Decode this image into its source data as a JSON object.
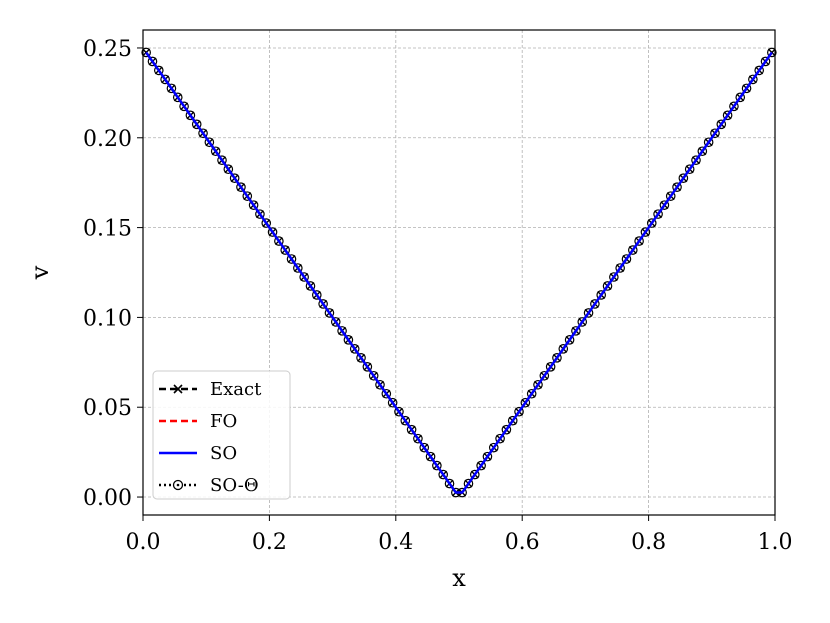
{
  "chart_data": {
    "type": "line",
    "title": "",
    "xlabel": "x",
    "ylabel": "v",
    "xlim": [
      0.0,
      1.0
    ],
    "ylim": [
      -0.01,
      0.26
    ],
    "grid": true,
    "legend_position": "lower-left",
    "x_ticks": [
      0.0,
      0.2,
      0.4,
      0.6,
      0.8,
      1.0
    ],
    "x_tick_labels": [
      "0.0",
      "0.2",
      "0.4",
      "0.6",
      "0.8",
      "1.0"
    ],
    "y_ticks": [
      0.0,
      0.05,
      0.1,
      0.15,
      0.2,
      0.25
    ],
    "y_tick_labels": [
      "0.00",
      "0.05",
      "0.10",
      "0.15",
      "0.20",
      "0.25"
    ],
    "x": [
      0.005,
      0.015,
      0.025,
      0.035,
      0.045,
      0.055,
      0.065,
      0.075,
      0.085,
      0.095,
      0.105,
      0.115,
      0.125,
      0.135,
      0.145,
      0.155,
      0.165,
      0.175,
      0.185,
      0.195,
      0.205,
      0.215,
      0.225,
      0.235,
      0.245,
      0.255,
      0.265,
      0.275,
      0.285,
      0.295,
      0.305,
      0.315,
      0.325,
      0.335,
      0.345,
      0.355,
      0.365,
      0.375,
      0.385,
      0.395,
      0.405,
      0.415,
      0.425,
      0.435,
      0.445,
      0.455,
      0.465,
      0.475,
      0.485,
      0.495,
      0.505,
      0.515,
      0.525,
      0.535,
      0.545,
      0.555,
      0.565,
      0.575,
      0.585,
      0.595,
      0.605,
      0.615,
      0.625,
      0.635,
      0.645,
      0.655,
      0.665,
      0.675,
      0.685,
      0.695,
      0.705,
      0.715,
      0.725,
      0.735,
      0.745,
      0.755,
      0.765,
      0.775,
      0.785,
      0.795,
      0.805,
      0.815,
      0.825,
      0.835,
      0.845,
      0.855,
      0.865,
      0.875,
      0.885,
      0.895,
      0.905,
      0.915,
      0.925,
      0.935,
      0.945,
      0.955,
      0.965,
      0.975,
      0.985,
      0.995
    ],
    "series": [
      {
        "name": "Exact",
        "color": "#000000",
        "style": "dashed",
        "marker": "x",
        "values": [
          0.2475,
          0.2425,
          0.2375,
          0.2325,
          0.2275,
          0.2225,
          0.2175,
          0.2125,
          0.2075,
          0.2025,
          0.1975,
          0.1925,
          0.1875,
          0.1825,
          0.1775,
          0.1725,
          0.1675,
          0.1625,
          0.1575,
          0.1525,
          0.1475,
          0.1425,
          0.1375,
          0.1325,
          0.1275,
          0.1225,
          0.1175,
          0.1125,
          0.1075,
          0.1025,
          0.0975,
          0.0925,
          0.0875,
          0.0825,
          0.0775,
          0.0725,
          0.0675,
          0.0625,
          0.0575,
          0.0525,
          0.0475,
          0.0425,
          0.0375,
          0.0325,
          0.0275,
          0.0225,
          0.0175,
          0.0125,
          0.0075,
          0.0025,
          0.0025,
          0.0075,
          0.0125,
          0.0175,
          0.0225,
          0.0275,
          0.0325,
          0.0375,
          0.0425,
          0.0475,
          0.0525,
          0.0575,
          0.0625,
          0.0675,
          0.0725,
          0.0775,
          0.0825,
          0.0875,
          0.0925,
          0.0975,
          0.1025,
          0.1075,
          0.1125,
          0.1175,
          0.1225,
          0.1275,
          0.1325,
          0.1375,
          0.1425,
          0.1475,
          0.1525,
          0.1575,
          0.1625,
          0.1675,
          0.1725,
          0.1775,
          0.1825,
          0.1875,
          0.1925,
          0.1975,
          0.2025,
          0.2075,
          0.2125,
          0.2175,
          0.2225,
          0.2275,
          0.2325,
          0.2375,
          0.2425,
          0.2475
        ]
      },
      {
        "name": "FO",
        "color": "#ff0000",
        "style": "dashed",
        "marker": "none",
        "values": [
          0.2475,
          0.2425,
          0.2375,
          0.2325,
          0.2275,
          0.2225,
          0.2175,
          0.2125,
          0.2075,
          0.2025,
          0.1975,
          0.1925,
          0.1875,
          0.1825,
          0.1775,
          0.1725,
          0.1675,
          0.1625,
          0.1575,
          0.1525,
          0.1475,
          0.1425,
          0.1375,
          0.1325,
          0.1275,
          0.1225,
          0.1175,
          0.1125,
          0.1075,
          0.1025,
          0.0975,
          0.0925,
          0.0875,
          0.0825,
          0.0775,
          0.0725,
          0.0675,
          0.0625,
          0.0575,
          0.0525,
          0.0475,
          0.0425,
          0.0375,
          0.0325,
          0.0275,
          0.0225,
          0.0175,
          0.0125,
          0.0075,
          0.0025,
          0.0025,
          0.0075,
          0.0125,
          0.0175,
          0.0225,
          0.0275,
          0.0325,
          0.0375,
          0.0425,
          0.0475,
          0.0525,
          0.0575,
          0.0625,
          0.0675,
          0.0725,
          0.0775,
          0.0825,
          0.0875,
          0.0925,
          0.0975,
          0.1025,
          0.1075,
          0.1125,
          0.1175,
          0.1225,
          0.1275,
          0.1325,
          0.1375,
          0.1425,
          0.1475,
          0.1525,
          0.1575,
          0.1625,
          0.1675,
          0.1725,
          0.1775,
          0.1825,
          0.1875,
          0.1925,
          0.1975,
          0.2025,
          0.2075,
          0.2125,
          0.2175,
          0.2225,
          0.2275,
          0.2325,
          0.2375,
          0.2425,
          0.2475
        ]
      },
      {
        "name": "SO",
        "color": "#0000ff",
        "style": "solid",
        "marker": "none",
        "values": [
          0.2475,
          0.2425,
          0.2375,
          0.2325,
          0.2275,
          0.2225,
          0.2175,
          0.2125,
          0.2075,
          0.2025,
          0.1975,
          0.1925,
          0.1875,
          0.1825,
          0.1775,
          0.1725,
          0.1675,
          0.1625,
          0.1575,
          0.1525,
          0.1475,
          0.1425,
          0.1375,
          0.1325,
          0.1275,
          0.1225,
          0.1175,
          0.1125,
          0.1075,
          0.1025,
          0.0975,
          0.0925,
          0.0875,
          0.0825,
          0.0775,
          0.0725,
          0.0675,
          0.0625,
          0.0575,
          0.0525,
          0.0475,
          0.0425,
          0.0375,
          0.0325,
          0.0275,
          0.0225,
          0.0175,
          0.0125,
          0.0075,
          0.0025,
          0.0025,
          0.0075,
          0.0125,
          0.0175,
          0.0225,
          0.0275,
          0.0325,
          0.0375,
          0.0425,
          0.0475,
          0.0525,
          0.0575,
          0.0625,
          0.0675,
          0.0725,
          0.0775,
          0.0825,
          0.0875,
          0.0925,
          0.0975,
          0.1025,
          0.1075,
          0.1125,
          0.1175,
          0.1225,
          0.1275,
          0.1325,
          0.1375,
          0.1425,
          0.1475,
          0.1525,
          0.1575,
          0.1625,
          0.1675,
          0.1725,
          0.1775,
          0.1825,
          0.1875,
          0.1925,
          0.1975,
          0.2025,
          0.2075,
          0.2125,
          0.2175,
          0.2225,
          0.2275,
          0.2325,
          0.2375,
          0.2425,
          0.2475
        ]
      },
      {
        "name": "SO-Θ",
        "color": "#000000",
        "style": "dotted",
        "marker": "circle-dot",
        "values": [
          0.2475,
          0.2425,
          0.2375,
          0.2325,
          0.2275,
          0.2225,
          0.2175,
          0.2125,
          0.2075,
          0.2025,
          0.1975,
          0.1925,
          0.1875,
          0.1825,
          0.1775,
          0.1725,
          0.1675,
          0.1625,
          0.1575,
          0.1525,
          0.1475,
          0.1425,
          0.1375,
          0.1325,
          0.1275,
          0.1225,
          0.1175,
          0.1125,
          0.1075,
          0.1025,
          0.0975,
          0.0925,
          0.0875,
          0.0825,
          0.0775,
          0.0725,
          0.0675,
          0.0625,
          0.0575,
          0.0525,
          0.0475,
          0.0425,
          0.0375,
          0.0325,
          0.0275,
          0.0225,
          0.0175,
          0.0125,
          0.0075,
          0.0025,
          0.0025,
          0.0075,
          0.0125,
          0.0175,
          0.0225,
          0.0275,
          0.0325,
          0.0375,
          0.0425,
          0.0475,
          0.0525,
          0.0575,
          0.0625,
          0.0675,
          0.0725,
          0.0775,
          0.0825,
          0.0875,
          0.0925,
          0.0975,
          0.1025,
          0.1075,
          0.1125,
          0.1175,
          0.1225,
          0.1275,
          0.1325,
          0.1375,
          0.1425,
          0.1475,
          0.1525,
          0.1575,
          0.1625,
          0.1675,
          0.1725,
          0.1775,
          0.1825,
          0.1875,
          0.1925,
          0.1975,
          0.2025,
          0.2075,
          0.2125,
          0.2175,
          0.2225,
          0.2275,
          0.2325,
          0.2375,
          0.2425,
          0.2475
        ]
      }
    ]
  }
}
